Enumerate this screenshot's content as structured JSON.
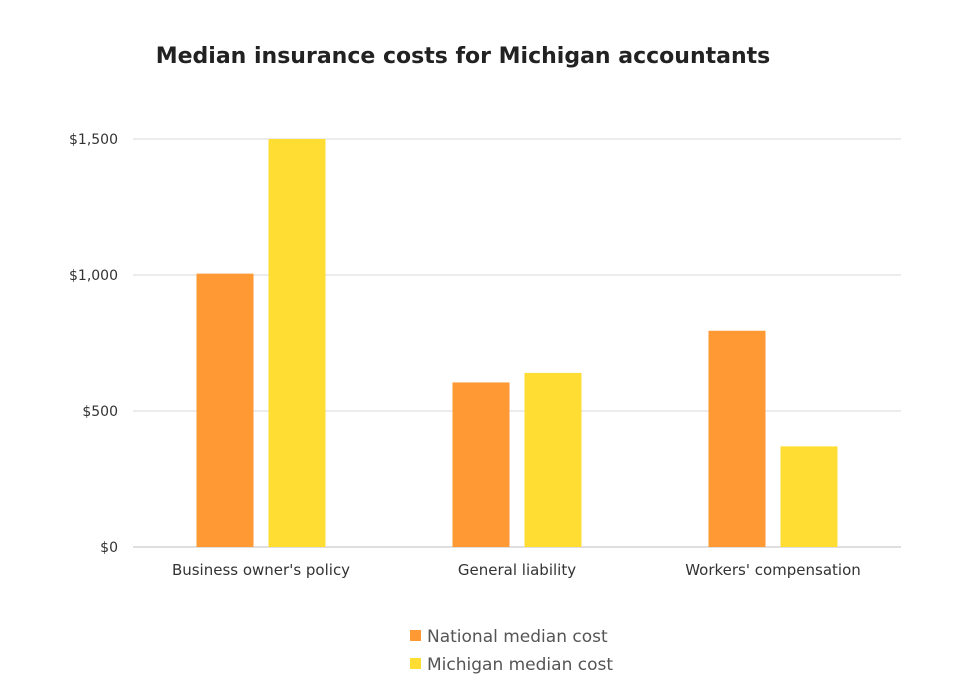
{
  "chart_data": {
    "type": "bar",
    "title": "Median insurance costs for Michigan accountants",
    "xlabel": "",
    "ylabel": "",
    "categories": [
      "Business owner's policy",
      "General liability",
      "Workers' compensation"
    ],
    "series": [
      {
        "name": "National median cost",
        "color": "#ff9933",
        "values": [
          1005,
          605,
          795
        ]
      },
      {
        "name": "Michigan median cost",
        "color": "#ffdd33",
        "values": [
          1500,
          640,
          370
        ]
      }
    ],
    "ylim": [
      0,
      1500
    ],
    "yticks": [
      0,
      500,
      1000,
      1500
    ],
    "ytick_labels": [
      "$0",
      "$500",
      "$1,000",
      "$1,500"
    ],
    "grid": true,
    "legend_position": "bottom-center"
  }
}
